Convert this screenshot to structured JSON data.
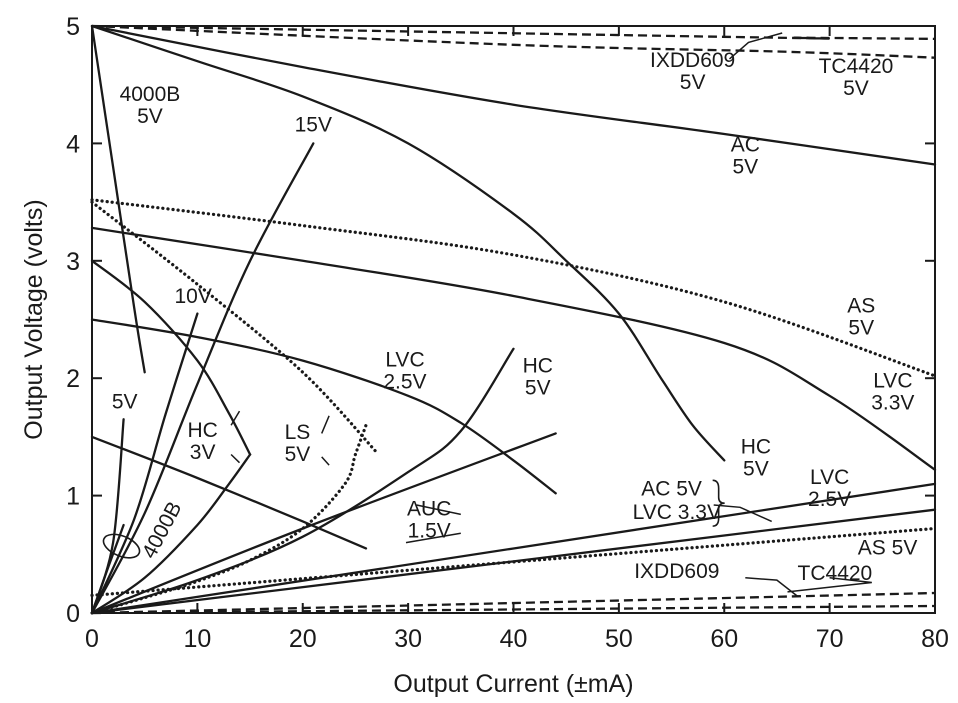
{
  "chart_data": {
    "type": "line",
    "title": "",
    "xlabel": "Output Current (±mA)",
    "ylabel": "Output Voltage (volts)",
    "xlim": [
      0,
      80
    ],
    "ylim": [
      0,
      5
    ],
    "xticks": [
      "0",
      "10",
      "20",
      "30",
      "40",
      "50",
      "60",
      "70",
      "80"
    ],
    "yticks": [
      "0",
      "1",
      "2",
      "3",
      "4",
      "5"
    ],
    "grid": false,
    "legend": "none (curves labeled directly)",
    "series": [
      {
        "style": "solid",
        "x": [
          0,
          20,
          40,
          60,
          80
        ],
        "y": [
          5.0,
          4.65,
          4.33,
          4.08,
          3.82
        ]
      },
      {
        "style": "dashed",
        "x": [
          0,
          65,
          67,
          80
        ],
        "y": [
          5.0,
          4.9,
          4.9,
          4.89
        ]
      },
      {
        "style": "dashed",
        "x": [
          0,
          40,
          66,
          80
        ],
        "y": [
          5.0,
          4.84,
          4.78,
          4.73
        ]
      },
      {
        "style": "solid",
        "x": [
          0,
          10,
          20,
          30,
          40,
          45,
          50,
          54,
          57,
          60
        ],
        "y": [
          5.0,
          4.7,
          4.4,
          4.0,
          3.4,
          3.0,
          2.55,
          2.0,
          1.6,
          1.3
        ]
      },
      {
        "style": "solid",
        "x": [
          0,
          2,
          4,
          5
        ],
        "y": [
          5.0,
          3.8,
          2.6,
          2.05
        ]
      },
      {
        "style": "solid",
        "x": [
          0,
          5,
          10,
          15,
          21
        ],
        "y": [
          0,
          0.85,
          1.95,
          3.0,
          4.0
        ]
      },
      {
        "style": "solid",
        "x": [
          0,
          4,
          7,
          10
        ],
        "y": [
          0,
          0.8,
          1.7,
          2.55
        ]
      },
      {
        "style": "solid",
        "x": [
          0,
          2,
          3
        ],
        "y": [
          0,
          0.6,
          1.65
        ]
      },
      {
        "style": "solid",
        "x": [
          0,
          1.5,
          3
        ],
        "y": [
          0,
          0.38,
          0.75
        ]
      },
      {
        "style": "solid",
        "x": [
          0,
          5,
          10,
          13,
          15
        ],
        "y": [
          3.0,
          2.65,
          2.15,
          1.7,
          1.35
        ]
      },
      {
        "style": "solid",
        "x": [
          0,
          5,
          10,
          13,
          15
        ],
        "y": [
          0,
          0.3,
          0.75,
          1.1,
          1.35
        ]
      },
      {
        "style": "dotted",
        "x": [
          0,
          10,
          20,
          27
        ],
        "y": [
          3.5,
          2.8,
          2.05,
          1.37
        ]
      },
      {
        "style": "dotted",
        "x": [
          0,
          5,
          10,
          15,
          20,
          24,
          25,
          26
        ],
        "y": [
          0,
          0.13,
          0.27,
          0.45,
          0.72,
          1.1,
          1.35,
          1.6
        ]
      },
      {
        "style": "dotted",
        "x": [
          0,
          20,
          40,
          60,
          80
        ],
        "y": [
          3.52,
          3.3,
          3.05,
          2.65,
          2.02
        ]
      },
      {
        "style": "solid",
        "x": [
          0,
          20,
          40,
          60,
          70,
          80
        ],
        "y": [
          3.28,
          3.0,
          2.7,
          2.3,
          1.85,
          1.22
        ]
      },
      {
        "style": "solid",
        "x": [
          0,
          10,
          20,
          30,
          35,
          40,
          44
        ],
        "y": [
          2.5,
          2.35,
          2.15,
          1.85,
          1.62,
          1.3,
          1.02
        ]
      },
      {
        "style": "solid",
        "x": [
          0,
          10,
          20,
          30,
          35,
          40
        ],
        "y": [
          0,
          0.28,
          0.65,
          1.2,
          1.55,
          2.25
        ]
      },
      {
        "style": "solid",
        "x": [
          0,
          20,
          44
        ],
        "y": [
          0,
          0.72,
          1.53
        ]
      },
      {
        "style": "solid",
        "x": [
          0,
          10,
          20,
          26
        ],
        "y": [
          1.5,
          1.15,
          0.78,
          0.55
        ]
      },
      {
        "style": "solid",
        "x": [
          0,
          80
        ],
        "y": [
          0,
          1.1
        ]
      },
      {
        "style": "solid",
        "x": [
          0,
          80
        ],
        "y": [
          0,
          0.88
        ]
      },
      {
        "style": "dotted",
        "x": [
          0,
          80
        ],
        "y": [
          0.15,
          0.72
        ]
      },
      {
        "style": "dashed",
        "x": [
          0,
          80
        ],
        "y": [
          0.0,
          0.17
        ]
      },
      {
        "style": "dashed",
        "x": [
          0,
          80
        ],
        "y": [
          0.0,
          0.06
        ]
      }
    ],
    "annotations": [
      {
        "lines": [
          "4000B",
          "5V"
        ],
        "x": 5.5,
        "y": 4.36
      },
      {
        "lines": [
          "15V"
        ],
        "x": 21,
        "y": 4.1
      },
      {
        "lines": [
          "IXDD609",
          "5V"
        ],
        "x": 57,
        "y": 4.65
      },
      {
        "lines": [
          "TC4420",
          "5V"
        ],
        "x": 72.5,
        "y": 4.6
      },
      {
        "lines": [
          "AC",
          "5V"
        ],
        "x": 62,
        "y": 3.93
      },
      {
        "lines": [
          "AS",
          "5V"
        ],
        "x": 73,
        "y": 2.56
      },
      {
        "lines": [
          "10V"
        ],
        "x": 9.6,
        "y": 2.64
      },
      {
        "lines": [
          "LVC",
          "2.5V"
        ],
        "x": 29.7,
        "y": 2.1
      },
      {
        "lines": [
          "HC",
          "5V"
        ],
        "x": 42.3,
        "y": 2.05
      },
      {
        "lines": [
          "LVC",
          "3.3V"
        ],
        "x": 76,
        "y": 1.92
      },
      {
        "lines": [
          "5V"
        ],
        "x": 3.1,
        "y": 1.74
      },
      {
        "lines": [
          "HC",
          "3V"
        ],
        "x": 10.5,
        "y": 1.5
      },
      {
        "lines": [
          "LS",
          "5V"
        ],
        "x": 19.5,
        "y": 1.48
      },
      {
        "lines": [
          "HC",
          "5V"
        ],
        "x": 63,
        "y": 1.36
      },
      {
        "lines": [
          "LVC",
          "2.5V"
        ],
        "x": 70,
        "y": 1.1
      },
      {
        "lines": [
          "AC 5V"
        ],
        "x": 55,
        "y": 1.0
      },
      {
        "lines": [
          "LVC 3.3V"
        ],
        "x": 55.5,
        "y": 0.8
      },
      {
        "lines": [
          "AUC",
          "1.5V"
        ],
        "x": 32,
        "y": 0.83
      },
      {
        "lines": [
          "AS 5V"
        ],
        "x": 75.5,
        "y": 0.5
      },
      {
        "lines": [
          "IXDD609"
        ],
        "x": 55.5,
        "y": 0.3
      },
      {
        "lines": [
          "TC4420"
        ],
        "x": 70.5,
        "y": 0.28
      },
      {
        "lines": [
          "4000B"
        ],
        "x": 7.2,
        "y": 0.68,
        "rotate": -62
      }
    ]
  }
}
